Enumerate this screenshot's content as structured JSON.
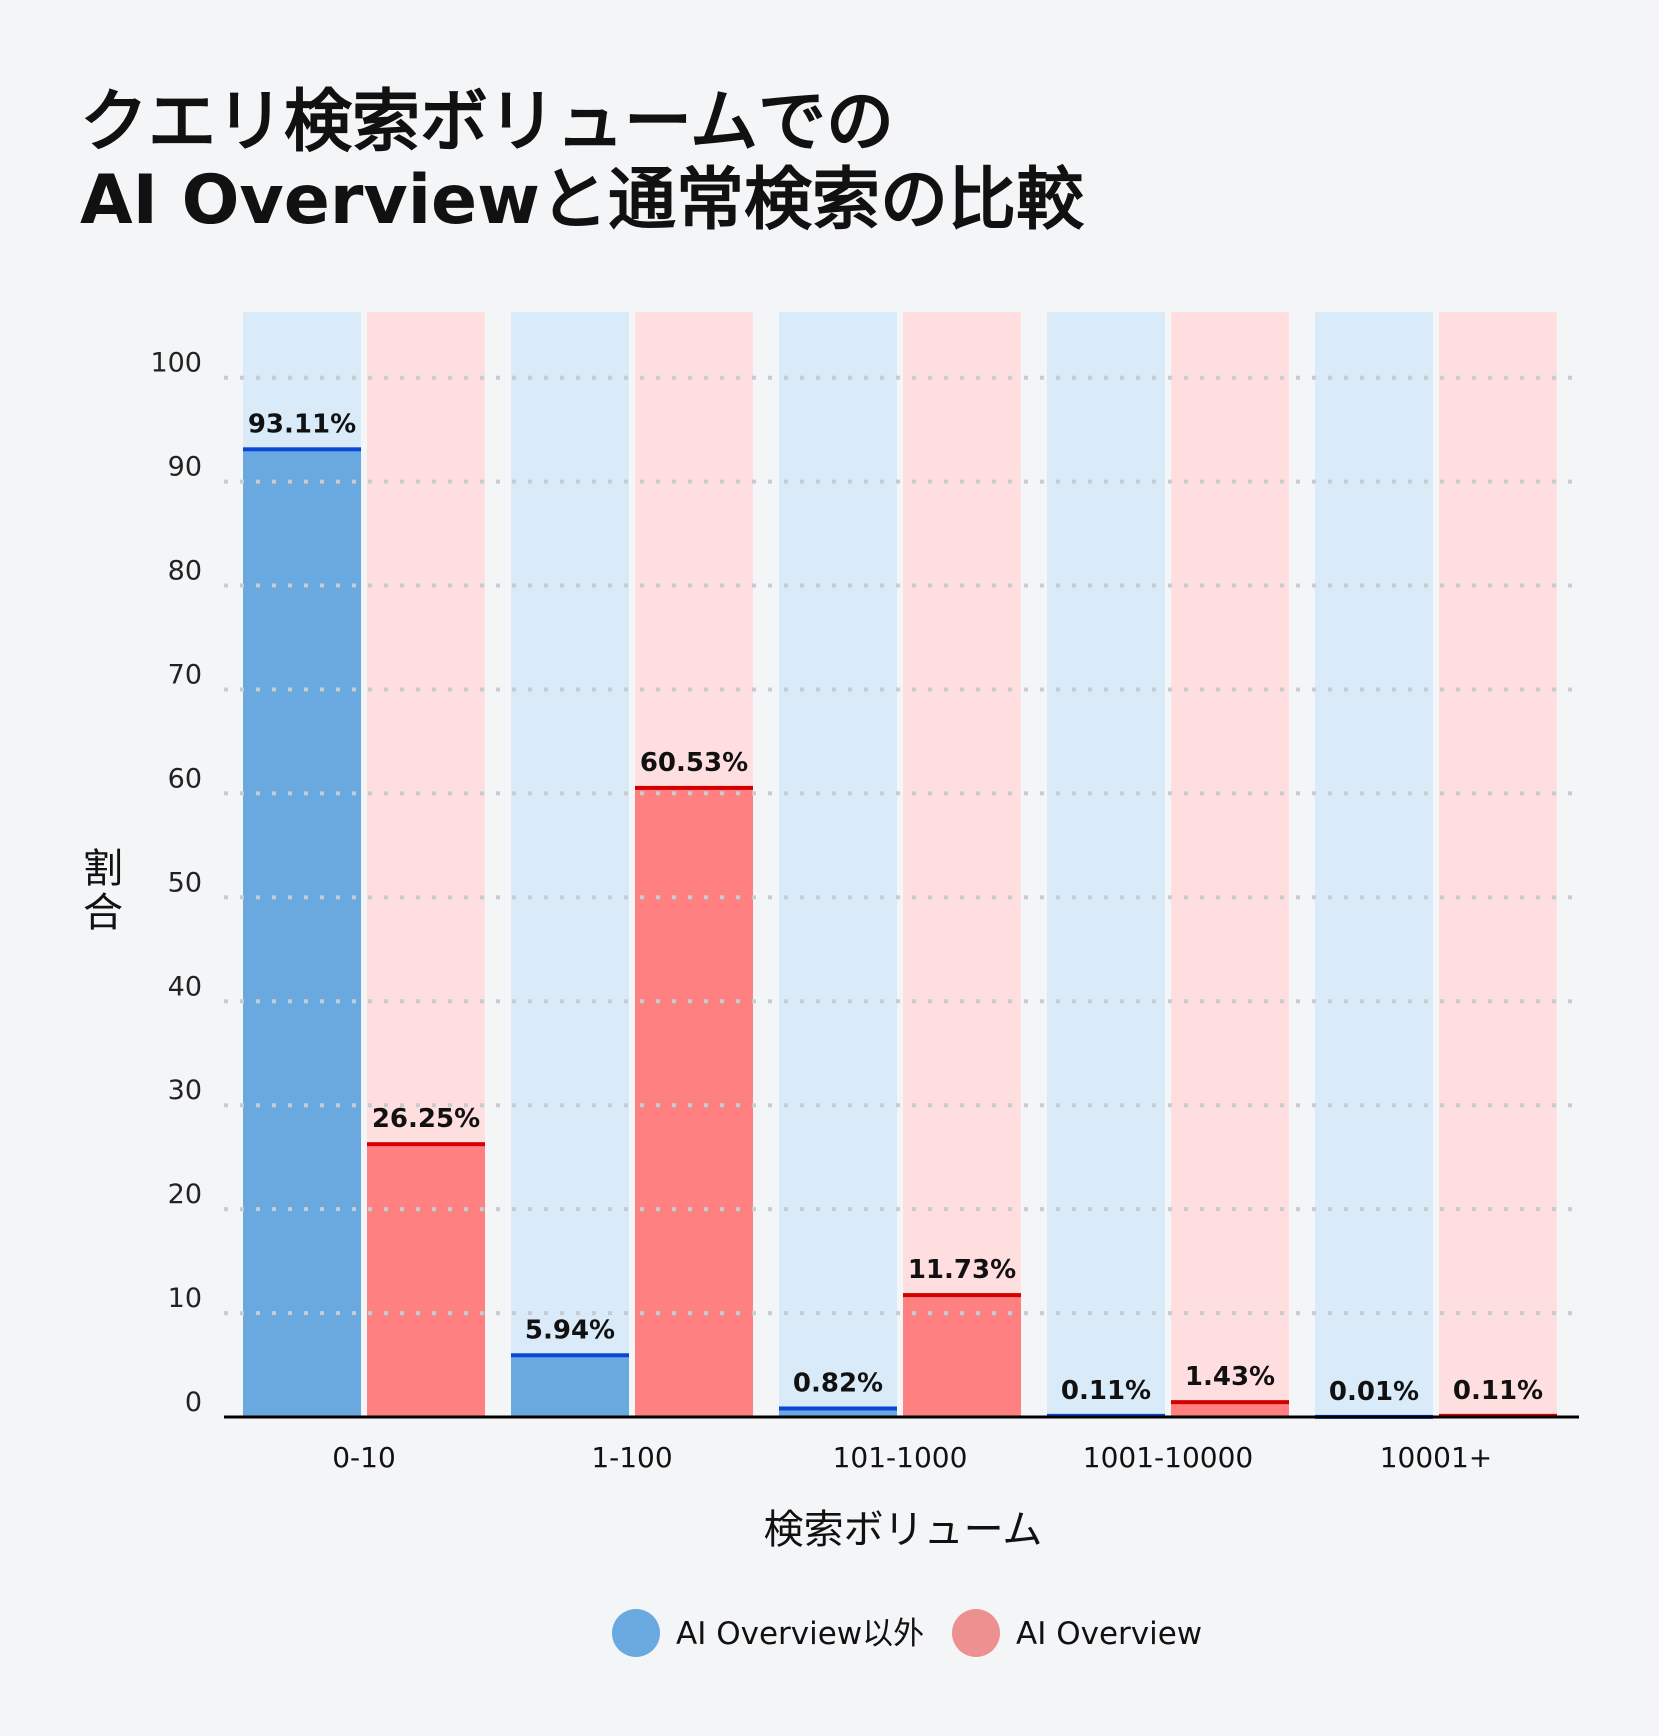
{
  "chart_data": {
    "type": "bar",
    "title_lines": [
      "クエリ検索ボリュームでの",
      "AI Overviewと通常検索の比較"
    ],
    "xlabel": "検索ボリューム",
    "ylabel": "割合",
    "ylim": [
      0,
      100
    ],
    "yticks": [
      0,
      10,
      20,
      30,
      40,
      50,
      60,
      70,
      80,
      90,
      100
    ],
    "grid": true,
    "legend_position": "bottom",
    "categories": [
      "0-10",
      "1-100",
      "101-1000",
      "1001-10000",
      "10001+"
    ],
    "series": [
      {
        "name": "AI Overview以外",
        "values": [
          93.11,
          5.94,
          0.82,
          0.11,
          0.01
        ],
        "labels": [
          "93.11%",
          "5.94%",
          "0.82%",
          "0.11%",
          "0.01%"
        ],
        "color": "#6aa8e0",
        "background": "#d9eaf9",
        "line_color": "#0a47d6",
        "legend_color": "#6aa8e0"
      },
      {
        "name": "AI Overview",
        "values": [
          26.25,
          60.53,
          11.73,
          1.43,
          0.11
        ],
        "labels": [
          "26.25%",
          "60.53%",
          "11.73%",
          "1.43%",
          "0.11%"
        ],
        "color": "#ff8080",
        "background": "#ffdedf",
        "line_color": "#d40000",
        "legend_color": "#ec9090"
      }
    ]
  }
}
